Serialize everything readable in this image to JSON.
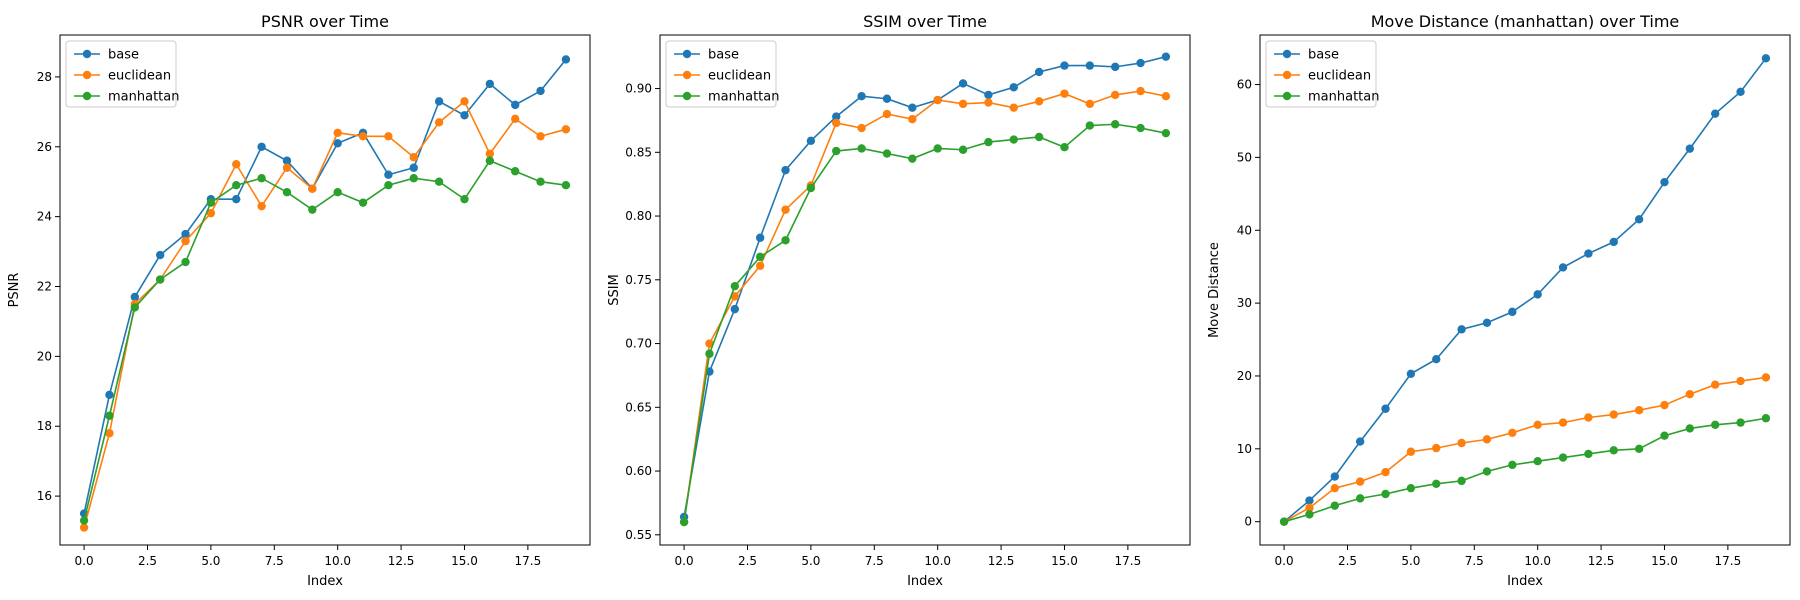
{
  "colors": {
    "base": "#1f77b4",
    "euclidean": "#ff7f0e",
    "manhattan": "#2ca02c"
  },
  "chart_data": [
    {
      "type": "line",
      "title": "PSNR over Time",
      "xlabel": "Index",
      "ylabel": "PSNR",
      "xlim": [
        -0.95,
        19.95
      ],
      "ylim": [
        14.6,
        29.2
      ],
      "xticks": [
        "0.0",
        "2.5",
        "5.0",
        "7.5",
        "10.0",
        "12.5",
        "15.0",
        "17.5"
      ],
      "yticks": [
        "16",
        "18",
        "20",
        "22",
        "24",
        "26",
        "28"
      ],
      "legend": "top-left",
      "grid": false,
      "x": [
        0,
        1,
        2,
        3,
        4,
        5,
        6,
        7,
        8,
        9,
        10,
        11,
        12,
        13,
        14,
        15,
        16,
        17,
        18,
        19
      ],
      "series": [
        {
          "name": "base",
          "values": [
            15.5,
            18.9,
            21.7,
            22.9,
            23.5,
            24.5,
            24.5,
            26.0,
            25.6,
            24.8,
            26.1,
            26.4,
            25.2,
            25.4,
            27.3,
            26.9,
            27.8,
            27.2,
            27.6,
            28.5
          ]
        },
        {
          "name": "euclidean",
          "values": [
            15.1,
            17.8,
            21.5,
            22.2,
            23.3,
            24.1,
            25.5,
            24.3,
            25.4,
            24.8,
            26.4,
            26.3,
            26.3,
            25.7,
            26.7,
            27.3,
            25.8,
            26.8,
            26.3,
            26.5
          ]
        },
        {
          "name": "manhattan",
          "values": [
            15.3,
            18.3,
            21.4,
            22.2,
            22.7,
            24.4,
            24.9,
            25.1,
            24.7,
            24.2,
            24.7,
            24.4,
            24.9,
            25.1,
            25.0,
            24.5,
            25.6,
            25.3,
            25.0,
            24.9
          ]
        }
      ]
    },
    {
      "type": "line",
      "title": "SSIM over Time",
      "xlabel": "Index",
      "ylabel": "SSIM",
      "xlim": [
        -0.95,
        19.95
      ],
      "ylim": [
        0.542,
        0.942
      ],
      "xticks": [
        "0.0",
        "2.5",
        "5.0",
        "7.5",
        "10.0",
        "12.5",
        "15.0",
        "17.5"
      ],
      "yticks": [
        "0.55",
        "0.60",
        "0.65",
        "0.70",
        "0.75",
        "0.80",
        "0.85",
        "0.90"
      ],
      "legend": "top-left",
      "grid": false,
      "x": [
        0,
        1,
        2,
        3,
        4,
        5,
        6,
        7,
        8,
        9,
        10,
        11,
        12,
        13,
        14,
        15,
        16,
        17,
        18,
        19
      ],
      "series": [
        {
          "name": "base",
          "values": [
            0.564,
            0.678,
            0.727,
            0.783,
            0.836,
            0.859,
            0.878,
            0.894,
            0.892,
            0.885,
            0.891,
            0.904,
            0.895,
            0.901,
            0.913,
            0.918,
            0.918,
            0.917,
            0.92,
            0.925
          ]
        },
        {
          "name": "euclidean",
          "values": [
            0.56,
            0.7,
            0.737,
            0.761,
            0.805,
            0.824,
            0.873,
            0.869,
            0.88,
            0.876,
            0.891,
            0.888,
            0.889,
            0.885,
            0.89,
            0.896,
            0.888,
            0.895,
            0.898,
            0.894
          ]
        },
        {
          "name": "manhattan",
          "values": [
            0.56,
            0.692,
            0.745,
            0.768,
            0.781,
            0.822,
            0.851,
            0.853,
            0.849,
            0.845,
            0.853,
            0.852,
            0.858,
            0.86,
            0.862,
            0.854,
            0.871,
            0.872,
            0.869,
            0.865
          ]
        }
      ]
    },
    {
      "type": "line",
      "title": "Move Distance (manhattan) over Time",
      "xlabel": "Index",
      "ylabel": "Move Distance",
      "xlim": [
        -0.95,
        19.95
      ],
      "ylim": [
        -3.2,
        66.8
      ],
      "xticks": [
        "0.0",
        "2.5",
        "5.0",
        "7.5",
        "10.0",
        "12.5",
        "15.0",
        "17.5"
      ],
      "yticks": [
        "0",
        "10",
        "20",
        "30",
        "40",
        "50",
        "60"
      ],
      "legend": "top-left",
      "grid": false,
      "x": [
        0,
        1,
        2,
        3,
        4,
        5,
        6,
        7,
        8,
        9,
        10,
        11,
        12,
        13,
        14,
        15,
        16,
        17,
        18,
        19
      ],
      "series": [
        {
          "name": "base",
          "values": [
            0,
            2.9,
            6.2,
            11.0,
            15.5,
            20.3,
            22.3,
            26.4,
            27.3,
            28.8,
            31.2,
            34.9,
            36.8,
            38.4,
            41.5,
            46.6,
            51.2,
            56.0,
            59.0,
            63.6
          ]
        },
        {
          "name": "euclidean",
          "values": [
            0,
            1.9,
            4.6,
            5.5,
            6.8,
            9.6,
            10.1,
            10.8,
            11.3,
            12.2,
            13.3,
            13.6,
            14.3,
            14.7,
            15.3,
            16.0,
            17.5,
            18.8,
            19.3,
            19.8
          ]
        },
        {
          "name": "manhattan",
          "values": [
            0,
            1.0,
            2.2,
            3.2,
            3.8,
            4.6,
            5.2,
            5.6,
            6.9,
            7.8,
            8.3,
            8.8,
            9.3,
            9.8,
            10.0,
            11.8,
            12.8,
            13.3,
            13.6,
            14.2
          ]
        }
      ]
    }
  ]
}
